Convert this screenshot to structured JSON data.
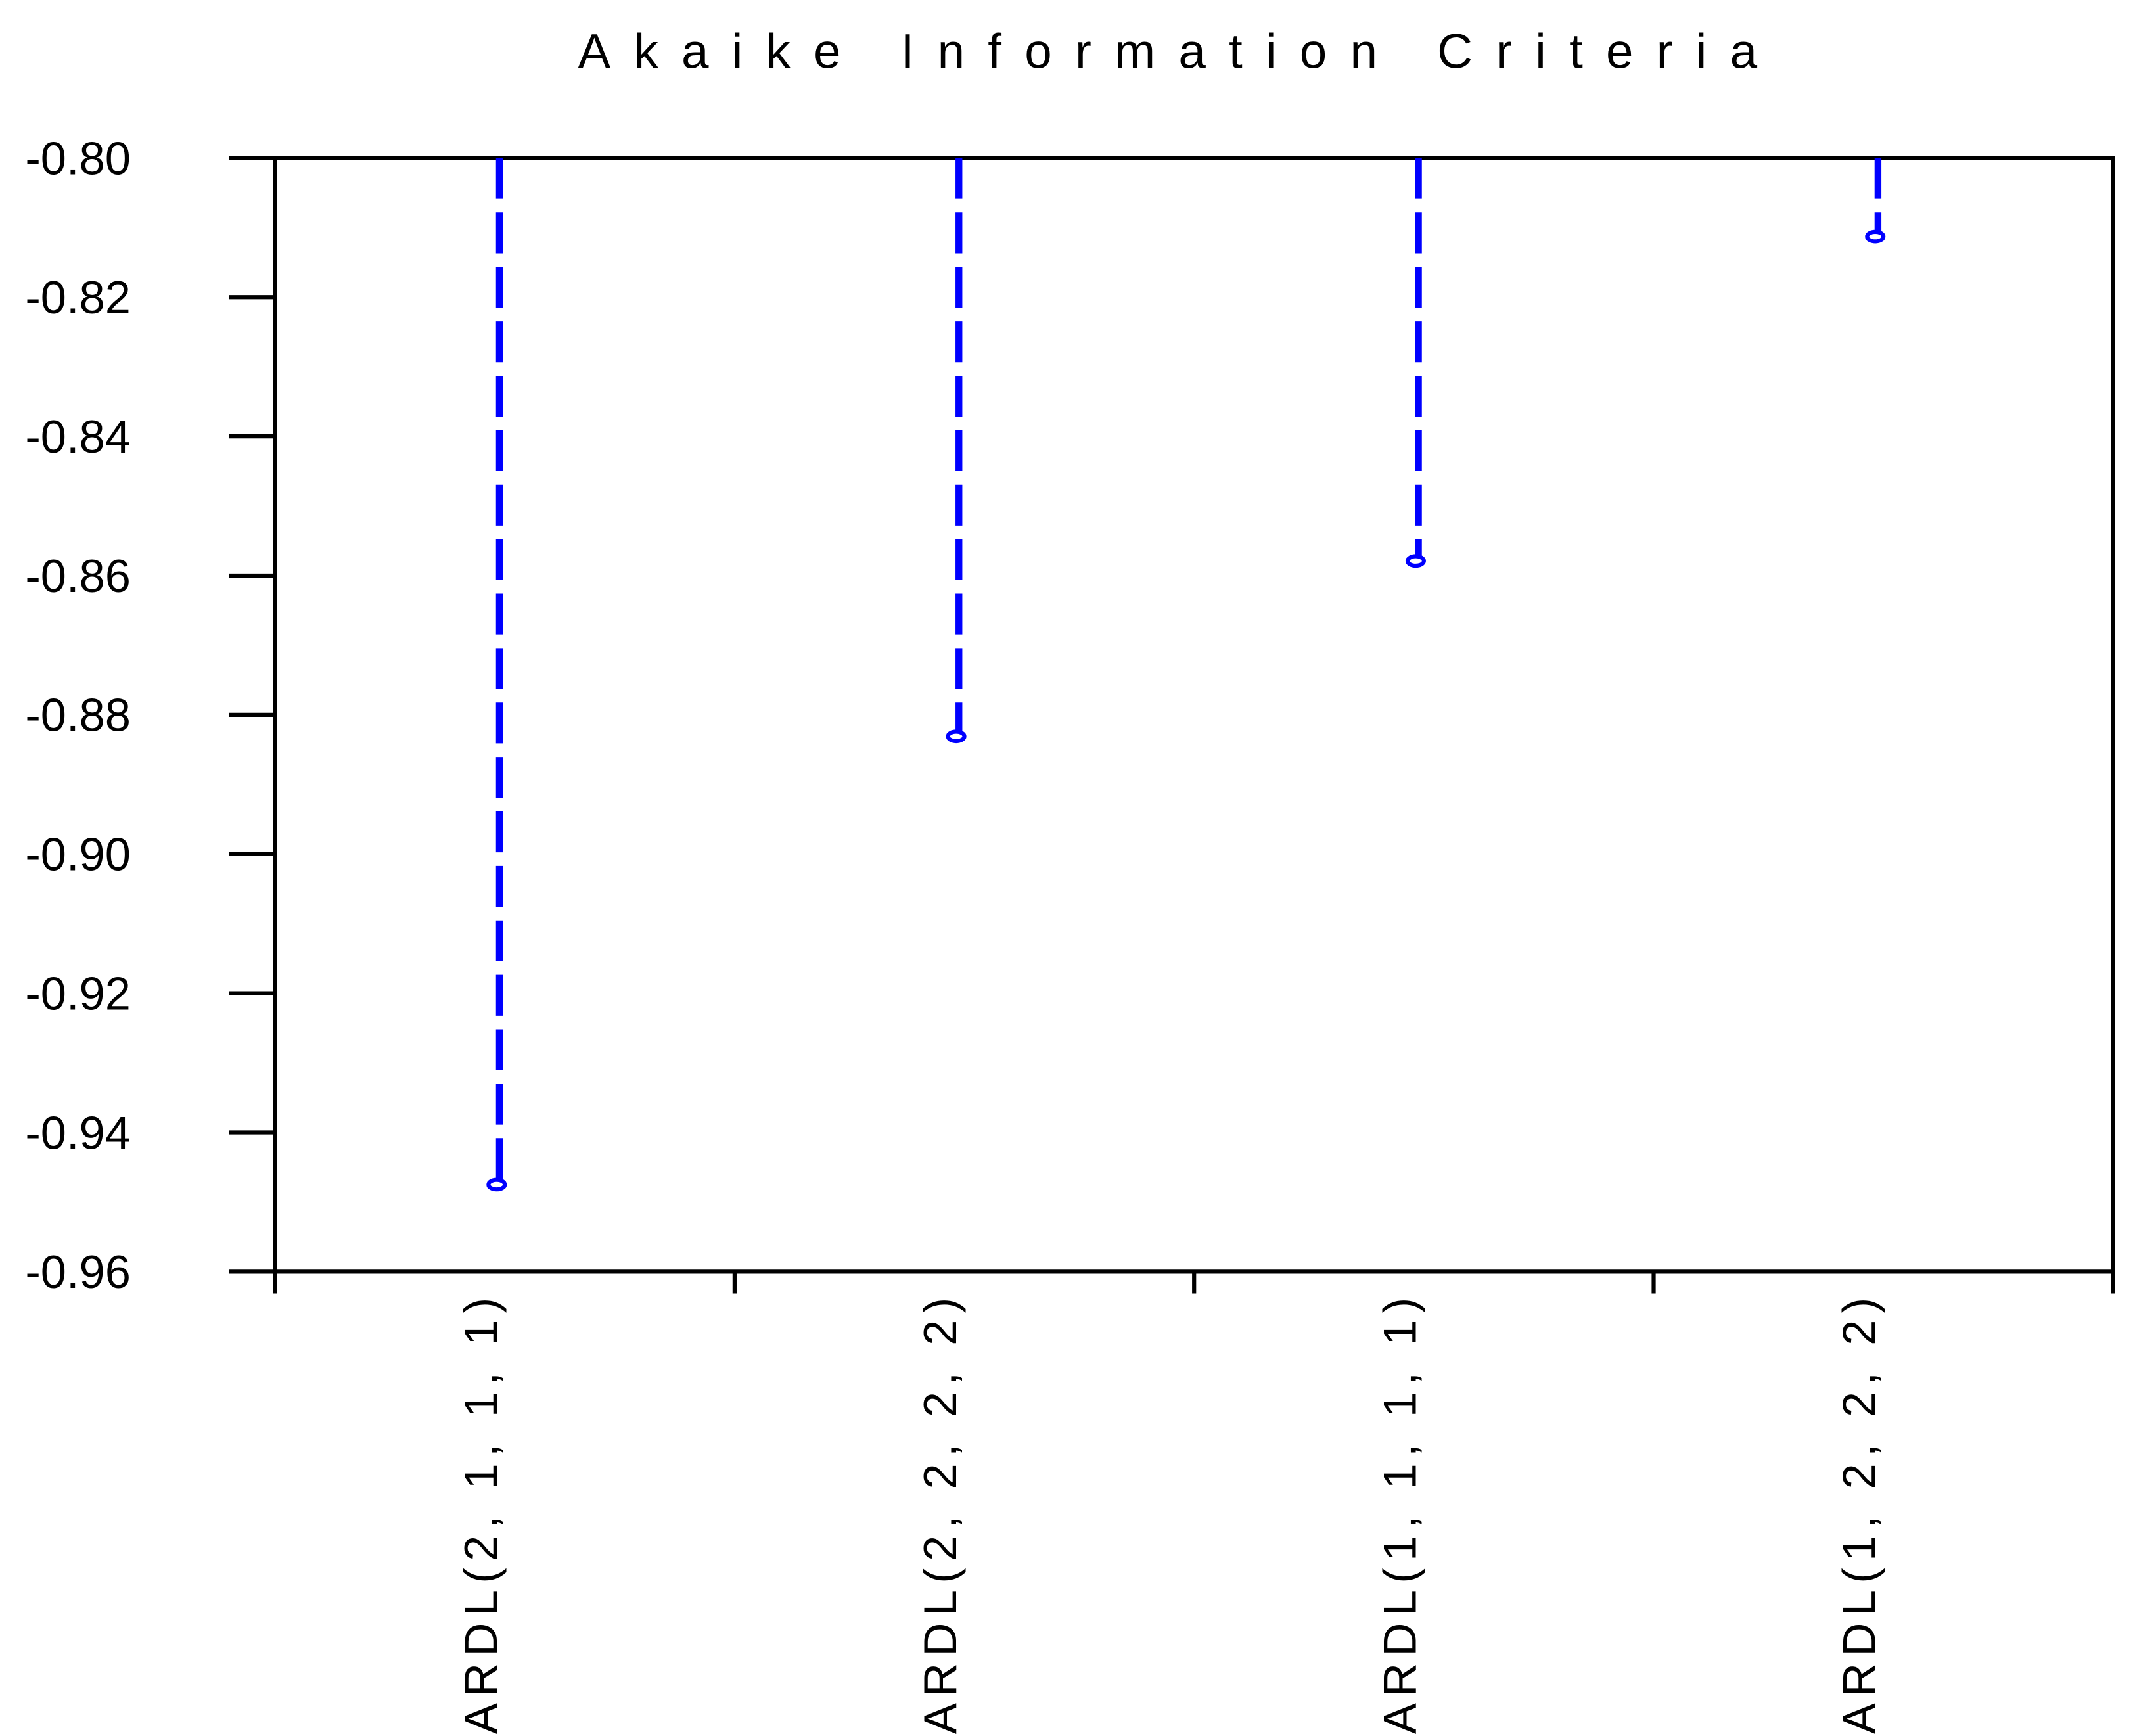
{
  "chart_data": {
    "type": "stem",
    "title": "Akaike Information Criteria",
    "categories": [
      "ARDL(2, 1, 1, 1)",
      "ARDL(2, 2, 2, 2)",
      "ARDL(1, 1, 1, 1)",
      "ARDL(1, 2, 2, 2)"
    ],
    "values": [
      -0.9475,
      -0.8831,
      -0.8579,
      -0.8113
    ],
    "color": "#0000ff",
    "ylim": [
      -0.96,
      -0.8
    ],
    "yticks": [
      {
        "value": -0.96,
        "label": "-0.96"
      },
      {
        "value": -0.94,
        "label": "-0.94"
      },
      {
        "value": -0.92,
        "label": "-0.92"
      },
      {
        "value": -0.9,
        "label": "-0.90"
      },
      {
        "value": -0.88,
        "label": "-0.88"
      },
      {
        "value": -0.86,
        "label": "-0.86"
      },
      {
        "value": -0.84,
        "label": "-0.84"
      },
      {
        "value": -0.82,
        "label": "-0.82"
      },
      {
        "value": -0.8,
        "label": "-0.80"
      }
    ],
    "grid": false
  }
}
